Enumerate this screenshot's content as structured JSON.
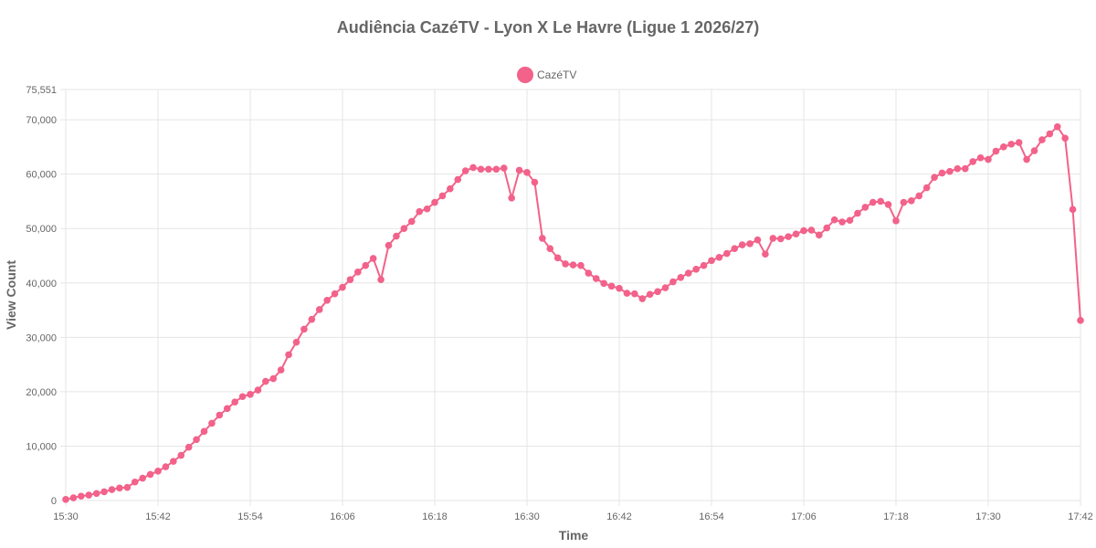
{
  "chart_data": {
    "type": "line",
    "title": "Audiência CazéTV - Lyon X Le Havre (Ligue 1 2026/27)",
    "xlabel": "Time",
    "ylabel": "View Count",
    "x_start": "15:30",
    "x_end": "17:42",
    "xticks": [
      "15:30",
      "15:42",
      "15:54",
      "16:06",
      "16:18",
      "16:30",
      "16:42",
      "16:54",
      "17:06",
      "17:18",
      "17:30",
      "17:42"
    ],
    "yticks": [
      "0",
      "10,000",
      "20,000",
      "30,000",
      "40,000",
      "50,000",
      "60,000",
      "70,000",
      "75,551"
    ],
    "ylim": [
      0,
      75551
    ],
    "grid": true,
    "legend_position": "top",
    "colors": {
      "series": "#f2628a",
      "grid": "#e5e5e5",
      "text": "#666666"
    },
    "series": [
      {
        "name": "CazéTV",
        "points": [
          [
            "15:30",
            200
          ],
          [
            "15:31",
            500
          ],
          [
            "15:32",
            800
          ],
          [
            "15:33",
            1000
          ],
          [
            "15:34",
            1300
          ],
          [
            "15:35",
            1600
          ],
          [
            "15:36",
            2000
          ],
          [
            "15:37",
            2300
          ],
          [
            "15:38",
            2400
          ],
          [
            "15:39",
            3400
          ],
          [
            "15:40",
            4100
          ],
          [
            "15:41",
            4800
          ],
          [
            "15:42",
            5400
          ],
          [
            "15:43",
            6200
          ],
          [
            "15:44",
            7200
          ],
          [
            "15:45",
            8300
          ],
          [
            "15:46",
            9800
          ],
          [
            "15:47",
            11200
          ],
          [
            "15:48",
            12700
          ],
          [
            "15:49",
            14200
          ],
          [
            "15:50",
            15700
          ],
          [
            "15:51",
            16900
          ],
          [
            "15:52",
            18100
          ],
          [
            "15:53",
            19100
          ],
          [
            "15:54",
            19500
          ],
          [
            "15:55",
            20300
          ],
          [
            "15:56",
            21900
          ],
          [
            "15:57",
            22400
          ],
          [
            "15:58",
            24000
          ],
          [
            "15:59",
            26800
          ],
          [
            "16:00",
            29100
          ],
          [
            "16:01",
            31500
          ],
          [
            "16:02",
            33300
          ],
          [
            "16:03",
            35100
          ],
          [
            "16:04",
            36800
          ],
          [
            "16:05",
            38000
          ],
          [
            "16:06",
            39200
          ],
          [
            "16:07",
            40600
          ],
          [
            "16:08",
            42000
          ],
          [
            "16:09",
            43200
          ],
          [
            "16:10",
            44500
          ],
          [
            "16:11",
            40600
          ],
          [
            "16:12",
            46900
          ],
          [
            "16:13",
            48600
          ],
          [
            "16:14",
            50000
          ],
          [
            "16:15",
            51300
          ],
          [
            "16:16",
            53100
          ],
          [
            "16:17",
            53600
          ],
          [
            "16:18",
            54800
          ],
          [
            "16:19",
            56000
          ],
          [
            "16:20",
            57300
          ],
          [
            "16:21",
            59000
          ],
          [
            "16:22",
            60600
          ],
          [
            "16:23",
            61200
          ],
          [
            "16:24",
            60900
          ],
          [
            "16:25",
            60900
          ],
          [
            "16:26",
            60900
          ],
          [
            "16:27",
            61100
          ],
          [
            "16:28",
            55600
          ],
          [
            "16:29",
            60700
          ],
          [
            "16:30",
            60300
          ],
          [
            "16:31",
            58500
          ],
          [
            "16:32",
            48200
          ],
          [
            "16:33",
            46300
          ],
          [
            "16:34",
            44600
          ],
          [
            "16:35",
            43500
          ],
          [
            "16:36",
            43300
          ],
          [
            "16:37",
            43200
          ],
          [
            "16:38",
            41800
          ],
          [
            "16:39",
            40800
          ],
          [
            "16:40",
            39900
          ],
          [
            "16:41",
            39400
          ],
          [
            "16:42",
            39000
          ],
          [
            "16:43",
            38100
          ],
          [
            "16:44",
            38000
          ],
          [
            "16:45",
            37100
          ],
          [
            "16:46",
            37900
          ],
          [
            "16:47",
            38400
          ],
          [
            "16:48",
            39100
          ],
          [
            "16:49",
            40200
          ],
          [
            "16:50",
            41000
          ],
          [
            "16:51",
            41800
          ],
          [
            "16:52",
            42500
          ],
          [
            "16:53",
            43200
          ],
          [
            "16:54",
            44100
          ],
          [
            "16:55",
            44700
          ],
          [
            "16:56",
            45400
          ],
          [
            "16:57",
            46300
          ],
          [
            "16:58",
            47000
          ],
          [
            "16:59",
            47200
          ],
          [
            "17:00",
            47900
          ],
          [
            "17:01",
            45300
          ],
          [
            "17:02",
            48200
          ],
          [
            "17:03",
            48100
          ],
          [
            "17:04",
            48500
          ],
          [
            "17:05",
            49000
          ],
          [
            "17:06",
            49600
          ],
          [
            "17:07",
            49700
          ],
          [
            "17:08",
            48800
          ],
          [
            "17:09",
            50100
          ],
          [
            "17:10",
            51600
          ],
          [
            "17:11",
            51200
          ],
          [
            "17:12",
            51500
          ],
          [
            "17:13",
            52800
          ],
          [
            "17:14",
            53900
          ],
          [
            "17:15",
            54800
          ],
          [
            "17:16",
            55000
          ],
          [
            "17:17",
            54400
          ],
          [
            "17:18",
            51400
          ],
          [
            "17:19",
            54800
          ],
          [
            "17:20",
            55100
          ],
          [
            "17:21",
            56000
          ],
          [
            "17:22",
            57500
          ],
          [
            "17:23",
            59400
          ],
          [
            "17:24",
            60200
          ],
          [
            "17:25",
            60500
          ],
          [
            "17:26",
            61000
          ],
          [
            "17:27",
            61000
          ],
          [
            "17:28",
            62300
          ],
          [
            "17:29",
            63000
          ],
          [
            "17:30",
            62700
          ],
          [
            "17:31",
            64200
          ],
          [
            "17:32",
            65000
          ],
          [
            "17:33",
            65500
          ],
          [
            "17:34",
            65800
          ],
          [
            "17:35",
            62700
          ],
          [
            "17:36",
            64300
          ],
          [
            "17:37",
            66300
          ],
          [
            "17:38",
            67400
          ],
          [
            "17:39",
            68700
          ],
          [
            "17:40",
            66600
          ],
          [
            "17:41",
            53500
          ],
          [
            "17:42",
            33100
          ]
        ]
      }
    ]
  }
}
